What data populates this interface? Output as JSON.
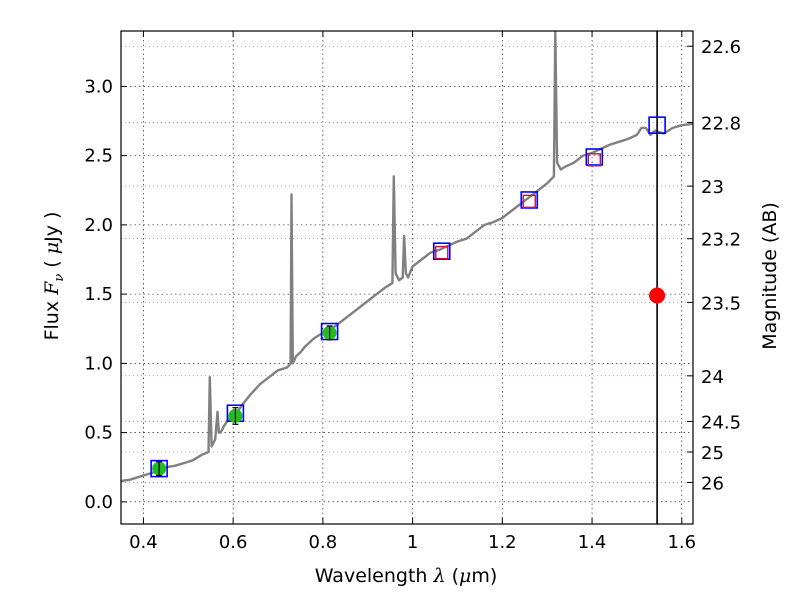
{
  "chart_data": {
    "type": "line",
    "xlabel": {
      "prefix": "Wavelength  ",
      "symbol": "λ",
      "unit_open": " (",
      "unit_symbol": "μ",
      "unit_rest": "m)"
    },
    "ylabel": {
      "prefix": "Flux  ",
      "symbol": "F",
      "subscript": "ν",
      "unit_open": "  ( ",
      "unit_symbol": "μ",
      "unit_rest": "Jy )"
    },
    "y2label": "Magnitude (AB)",
    "xlim": [
      0.35,
      1.625
    ],
    "ylim": [
      -0.16,
      3.4
    ],
    "xticks": [
      0.4,
      0.6,
      0.8,
      1.0,
      1.2,
      1.4,
      1.6
    ],
    "xtick_labels": [
      "0.4",
      "0.6",
      "0.8",
      "1",
      "1.2",
      "1.4",
      "1.6"
    ],
    "yticks": [
      0.0,
      0.5,
      1.0,
      1.5,
      2.0,
      2.5,
      3.0
    ],
    "ytick_labels": [
      "0.0",
      "0.5",
      "1.0",
      "1.5",
      "2.0",
      "2.5",
      "3.0"
    ],
    "mag_ticks": [
      {
        "label": "22.6",
        "flux": 3.29
      },
      {
        "label": "22.8",
        "flux": 2.74
      },
      {
        "label": "23",
        "flux": 2.28
      },
      {
        "label": "23.2",
        "flux": 1.9
      },
      {
        "label": "23.5",
        "flux": 1.44
      },
      {
        "label": "24",
        "flux": 0.91
      },
      {
        "label": "24.5",
        "flux": 0.58
      },
      {
        "label": "25",
        "flux": 0.36
      },
      {
        "label": "26",
        "flux": 0.14
      }
    ],
    "grid": true,
    "colors": {
      "spectrum": "#808080",
      "blue_square": "#0000ff",
      "red_square": "#c0143c",
      "green_point": "#22bb22",
      "red_point": "#ff0000",
      "vline": "#000000"
    },
    "spectrum": {
      "name": "",
      "x": [
        0.35,
        0.37,
        0.39,
        0.41,
        0.43,
        0.45,
        0.47,
        0.49,
        0.51,
        0.53,
        0.545,
        0.548,
        0.552,
        0.56,
        0.565,
        0.568,
        0.572,
        0.58,
        0.59,
        0.6,
        0.61,
        0.62,
        0.64,
        0.66,
        0.68,
        0.7,
        0.72,
        0.728,
        0.73,
        0.733,
        0.74,
        0.75,
        0.76,
        0.78,
        0.8,
        0.82,
        0.84,
        0.86,
        0.88,
        0.9,
        0.92,
        0.94,
        0.955,
        0.958,
        0.962,
        0.97,
        0.978,
        0.981,
        0.985,
        0.99,
        1.0,
        1.02,
        1.04,
        1.06,
        1.08,
        1.1,
        1.12,
        1.14,
        1.16,
        1.18,
        1.2,
        1.22,
        1.24,
        1.26,
        1.28,
        1.3,
        1.315,
        1.318,
        1.322,
        1.33,
        1.34,
        1.36,
        1.38,
        1.4,
        1.42,
        1.44,
        1.46,
        1.48,
        1.5,
        1.51,
        1.52,
        1.53,
        1.54,
        1.56,
        1.58,
        1.6,
        1.625
      ],
      "values": [
        0.15,
        0.16,
        0.18,
        0.2,
        0.22,
        0.25,
        0.26,
        0.28,
        0.3,
        0.34,
        0.36,
        0.9,
        0.4,
        0.45,
        0.65,
        0.5,
        0.5,
        0.55,
        0.6,
        0.62,
        0.65,
        0.7,
        0.78,
        0.85,
        0.9,
        0.95,
        0.97,
        1.0,
        2.22,
        1.0,
        1.05,
        1.08,
        1.12,
        1.18,
        1.22,
        1.25,
        1.3,
        1.35,
        1.4,
        1.45,
        1.5,
        1.55,
        1.58,
        2.35,
        1.65,
        1.6,
        1.62,
        1.92,
        1.65,
        1.62,
        1.7,
        1.75,
        1.8,
        1.82,
        1.85,
        1.88,
        1.9,
        1.95,
        2.0,
        2.02,
        2.05,
        2.1,
        2.15,
        2.2,
        2.25,
        2.3,
        2.35,
        3.4,
        2.45,
        2.4,
        2.42,
        2.45,
        2.5,
        2.52,
        2.55,
        2.58,
        2.6,
        2.62,
        2.65,
        2.7,
        2.7,
        2.65,
        2.68,
        2.66,
        2.7,
        2.72,
        2.73
      ]
    },
    "blue_squares": {
      "x": [
        0.435,
        0.605,
        0.815,
        1.065,
        1.26,
        1.405,
        1.545
      ],
      "values": [
        0.24,
        0.64,
        1.23,
        1.81,
        2.18,
        2.49,
        2.72
      ]
    },
    "red_squares": {
      "x": [
        1.065,
        1.26,
        1.405
      ],
      "values": [
        1.8,
        2.17,
        2.47
      ]
    },
    "green_points": {
      "x": [
        0.435,
        0.605,
        0.815
      ],
      "values": [
        0.24,
        0.62,
        1.22
      ],
      "errors": [
        0.05,
        0.06,
        0.05
      ]
    },
    "red_point": {
      "x": 1.545,
      "value": 1.49
    },
    "vline_x": 1.545
  }
}
